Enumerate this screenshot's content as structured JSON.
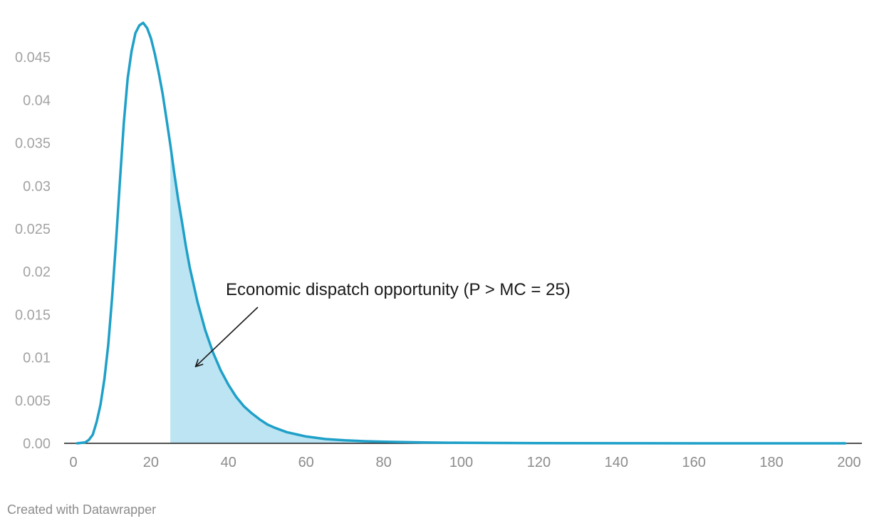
{
  "chart_data": {
    "type": "area",
    "title": "",
    "xlabel": "",
    "ylabel": "",
    "xlim": [
      0,
      200
    ],
    "ylim": [
      0,
      0.05
    ],
    "x_ticks": [
      0,
      20,
      40,
      60,
      80,
      100,
      120,
      140,
      160,
      180,
      200
    ],
    "x_tick_labels": [
      "0",
      "20",
      "40",
      "60",
      "80",
      "100",
      "120",
      "140",
      "160",
      "180",
      "200"
    ],
    "y_ticks": [
      0,
      0.005,
      0.01,
      0.015,
      0.02,
      0.025,
      0.03,
      0.035,
      0.04,
      0.045
    ],
    "y_tick_labels": [
      "0.00",
      "0.005",
      "0.01",
      "0.015",
      "0.02",
      "0.025",
      "0.03",
      "0.035",
      "0.04",
      "0.045"
    ],
    "grid": false,
    "series": [
      {
        "name": "",
        "color": "#1fa0c8",
        "x": [
          1,
          3,
          4,
          5,
          6,
          7,
          8,
          9,
          10,
          11,
          12,
          13,
          14,
          15,
          16,
          17,
          18,
          19,
          20,
          21,
          22,
          23,
          24,
          25,
          26,
          27,
          28,
          29,
          30,
          32,
          34,
          36,
          38,
          40,
          42,
          44,
          46,
          48,
          50,
          52,
          55,
          58,
          60,
          65,
          70,
          75,
          80,
          90,
          100,
          120,
          140,
          160,
          180,
          199
        ],
        "y": [
          0,
          0.0001,
          0.0004,
          0.001,
          0.0025,
          0.0045,
          0.0075,
          0.0115,
          0.017,
          0.0235,
          0.0305,
          0.0373,
          0.0425,
          0.0457,
          0.0478,
          0.0487,
          0.049,
          0.0484,
          0.0472,
          0.0454,
          0.0432,
          0.0408,
          0.0378,
          0.0348,
          0.0315,
          0.0285,
          0.0258,
          0.023,
          0.0205,
          0.0165,
          0.0132,
          0.0106,
          0.0085,
          0.0068,
          0.0054,
          0.0043,
          0.0035,
          0.0028,
          0.0022,
          0.0018,
          0.0013,
          0.001,
          0.0008,
          0.0005,
          0.00035,
          0.00025,
          0.00018,
          0.0001,
          6e-05,
          2e-05,
          1e-05,
          0,
          0,
          0
        ]
      }
    ],
    "shaded_region": {
      "x_from": 25,
      "color": "#bde4f2"
    },
    "annotation": {
      "text": "Economic dispatch opportunity (P > MC = 25)",
      "arrow_to": {
        "x": 32,
        "y": 0.009
      }
    },
    "footer": "Created with Datawrapper"
  }
}
